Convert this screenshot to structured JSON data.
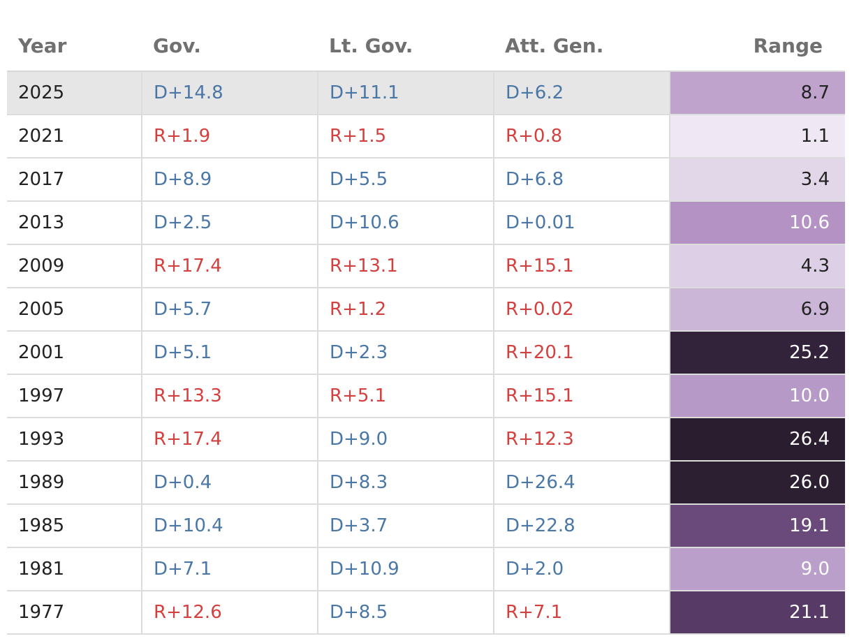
{
  "table": {
    "header": [
      "Year",
      "Gov.",
      "Lt. Gov.",
      "Att. Gen.",
      "Range"
    ],
    "rows": [
      [
        "2025",
        "D+14.8",
        "D+11.1",
        "D+6.2",
        "8.7"
      ],
      [
        "2021",
        "R+1.9",
        "R+1.5",
        "R+0.8",
        "1.1"
      ],
      [
        "2017",
        "D+8.9",
        "D+5.5",
        "D+6.8",
        "3.4"
      ],
      [
        "2013",
        "D+2.5",
        "D+10.6",
        "D+0.01",
        "10.6"
      ],
      [
        "2009",
        "R+17.4",
        "R+13.1",
        "R+15.1",
        "4.3"
      ],
      [
        "2005",
        "D+5.7",
        "R+1.2",
        "R+0.02",
        "6.9"
      ],
      [
        "2001",
        "D+5.1",
        "D+2.3",
        "R+20.1",
        "25.2"
      ],
      [
        "1997",
        "R+13.3",
        "R+5.1",
        "R+15.1",
        "10.0"
      ],
      [
        "1993",
        "R+17.4",
        "D+9.0",
        "R+12.3",
        "26.4"
      ],
      [
        "1989",
        "D+0.4",
        "D+8.3",
        "D+26.4",
        "26.0"
      ],
      [
        "1985",
        "D+10.4",
        "D+3.7",
        "D+22.8",
        "19.1"
      ],
      [
        "1981",
        "D+7.1",
        "D+10.9",
        "D+2.0",
        "9.0"
      ],
      [
        "1977",
        "R+12.6",
        "D+8.5",
        "R+7.1",
        "21.1"
      ]
    ],
    "range_colors": [
      "#bfa3cd",
      "#efe7f3",
      "#e2d6e9",
      "#b492c3",
      "#ddd0e6",
      "#cbb6d8",
      "#33233a",
      "#b799c7",
      "#2a1d30",
      "#2c1f32",
      "#6a4a7a",
      "#bb9fcb",
      "#573b66"
    ]
  }
}
